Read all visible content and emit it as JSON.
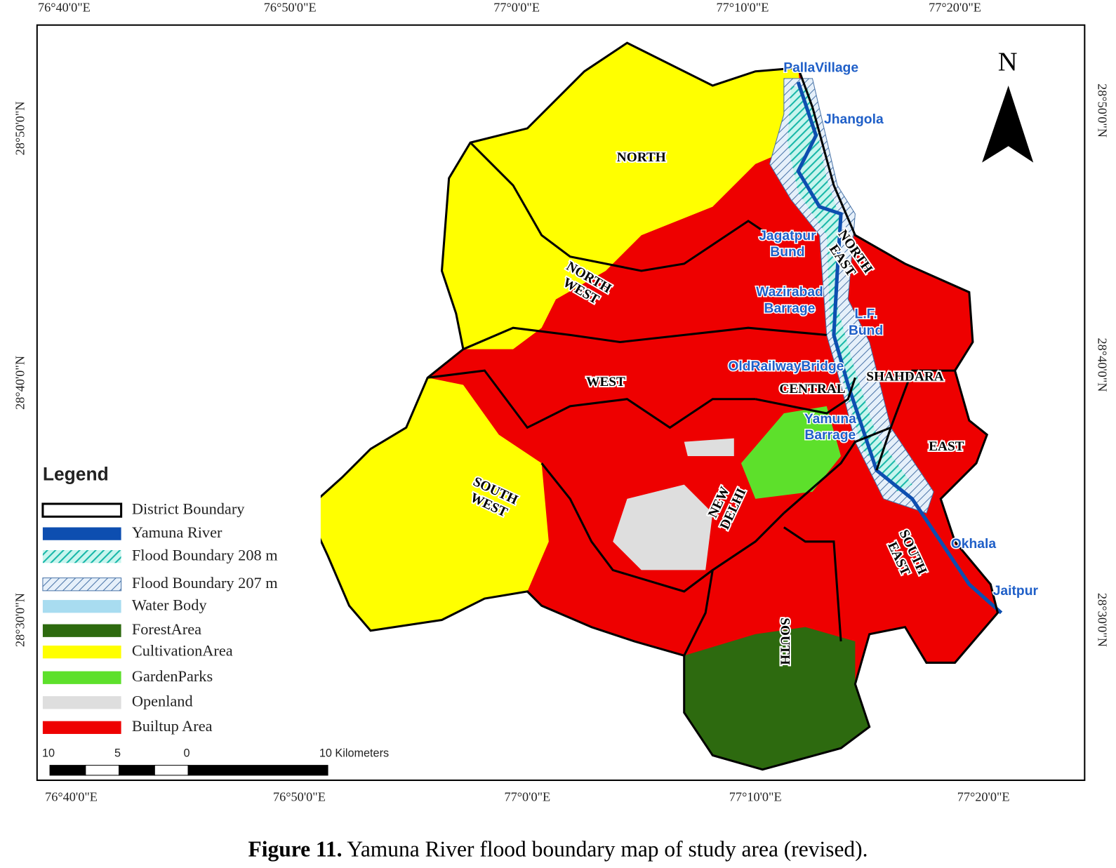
{
  "map": {
    "top_axis_labels": [
      "76°40'0\"E",
      "76°50'0\"E",
      "77°0'0\"E",
      "77°10'0\"E",
      "77°20'0\"E"
    ],
    "bottom_axis_labels": [
      "76°40'0\"E",
      "76°50'0\"E",
      "77°0'0\"E",
      "77°10'0\"E",
      "77°20'0\"E"
    ],
    "left_axis_labels": [
      "28°50'0\"N",
      "28°40'0\"N",
      "28°30'0\"N"
    ],
    "right_axis_labels": [
      "28°50'0\"N",
      "28°40'0\"N",
      "28°30'0\"N"
    ],
    "north_arrow": "N",
    "districts": [
      {
        "lines": [
          "NORTH"
        ]
      },
      {
        "lines": [
          "NORTH",
          "WEST"
        ]
      },
      {
        "lines": [
          "WEST"
        ]
      },
      {
        "lines": [
          "SOUTH",
          "WEST"
        ]
      },
      {
        "lines": [
          "NEW",
          "DELHI"
        ]
      },
      {
        "lines": [
          "CENTRAL"
        ]
      },
      {
        "lines": [
          "NORTH",
          "EAST"
        ]
      },
      {
        "lines": [
          "SHAHDARA"
        ]
      },
      {
        "lines": [
          "EAST"
        ]
      },
      {
        "lines": [
          "SOUTH",
          "EAST"
        ]
      },
      {
        "lines": [
          "SOUTH"
        ]
      }
    ],
    "places": [
      {
        "lines": [
          "PallaVillage"
        ]
      },
      {
        "lines": [
          "Jhangola"
        ]
      },
      {
        "lines": [
          "Jagatpur",
          "Bund"
        ]
      },
      {
        "lines": [
          "Wazirabad",
          "Barrage"
        ]
      },
      {
        "lines": [
          "L.F.",
          "Bund"
        ]
      },
      {
        "lines": [
          "OldRailwayBridge"
        ]
      },
      {
        "lines": [
          "Yamuna",
          "Barrage"
        ]
      },
      {
        "lines": [
          "Okhala"
        ]
      },
      {
        "lines": [
          "Jaitpur"
        ]
      }
    ],
    "legend": {
      "title": "Legend",
      "items": [
        "District Boundary",
        "Yamuna River",
        "Flood Boundary 208 m",
        "Flood Boundary 207 m",
        "Water Body",
        "ForestArea",
        "CultivationArea",
        "GardenParks",
        "Openland",
        "Builtup Area"
      ]
    },
    "scale_bar": {
      "labels": [
        10,
        5,
        0
      ],
      "end_label": "10 Kilometers"
    }
  },
  "caption": {
    "label": "Figure 11.",
    "text": " Yamuna River flood boundary map of study area (revised)."
  }
}
